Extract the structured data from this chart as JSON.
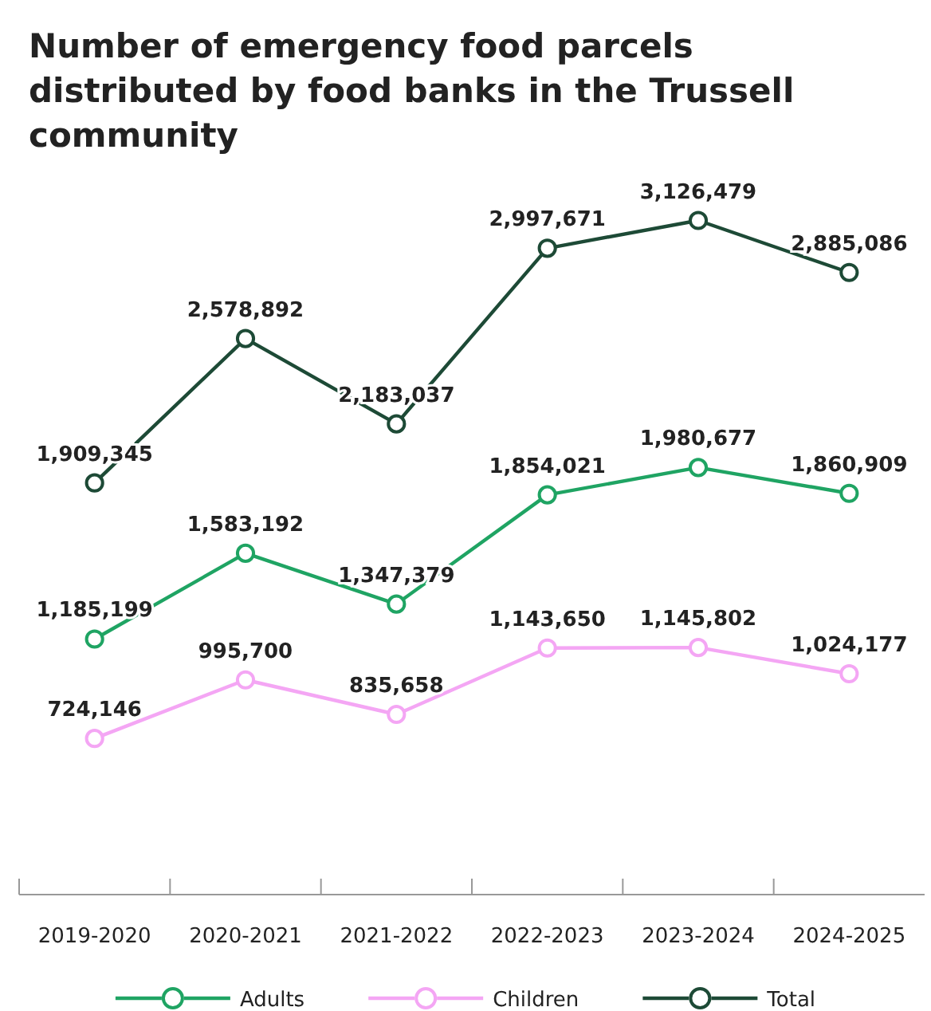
{
  "chart_data": {
    "type": "line",
    "title": "Number of emergency food parcels distributed by food banks in the Trussell community",
    "categories": [
      "2019-2020",
      "2020-2021",
      "2021-2022",
      "2022-2023",
      "2023-2024",
      "2024-2025"
    ],
    "series": [
      {
        "name": "Adults",
        "color": "#1fa463",
        "values": [
          1185199,
          1583192,
          1347379,
          1854021,
          1980677,
          1860909
        ],
        "value_labels": [
          "1,185,199",
          "1,583,192",
          "1,347,379",
          "1,854,021",
          "1,980,677",
          "1,860,909"
        ]
      },
      {
        "name": "Children",
        "color": "#f4a6f4",
        "values": [
          724146,
          995700,
          835658,
          1143650,
          1145802,
          1024177
        ],
        "value_labels": [
          "724,146",
          "995,700",
          "835,658",
          "1,143,650",
          "1,145,802",
          "1,024,177"
        ]
      },
      {
        "name": "Total",
        "color": "#1d4a36",
        "values": [
          1909345,
          2578892,
          2183037,
          2997671,
          3126479,
          2885086
        ],
        "value_labels": [
          "1,909,345",
          "2,578,892",
          "2,183,037",
          "2,997,671",
          "3,126,479",
          "2,885,086"
        ]
      }
    ],
    "tick_labels": "x",
    "marker": "circle",
    "line_style": "solid",
    "legend": "bottom"
  }
}
